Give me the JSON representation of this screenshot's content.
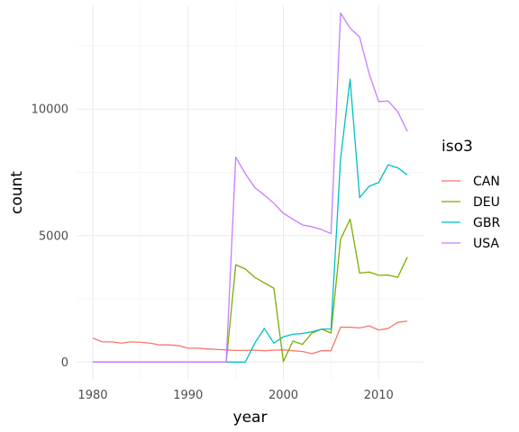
{
  "chart_data": {
    "type": "line",
    "xlabel": "year",
    "ylabel": "count",
    "xlim": [
      1978.3,
      2014.7
    ],
    "ylim": [
      -700,
      14100
    ],
    "x_ticks": [
      1980,
      1990,
      2000,
      2010
    ],
    "x_tick_labels": [
      "1980",
      "1990",
      "2000",
      "2010"
    ],
    "y_ticks": [
      0,
      5000,
      10000
    ],
    "y_tick_labels": [
      "0",
      "5000",
      "10000"
    ],
    "grid": true,
    "legend": {
      "title": "iso3",
      "position": "right"
    },
    "x": [
      1980,
      1981,
      1982,
      1983,
      1984,
      1985,
      1986,
      1987,
      1988,
      1989,
      1990,
      1991,
      1992,
      1993,
      1994,
      1995,
      1996,
      1997,
      1998,
      1999,
      2000,
      2001,
      2002,
      2003,
      2004,
      2005,
      2006,
      2007,
      2008,
      2009,
      2010,
      2011,
      2012,
      2013
    ],
    "series": [
      {
        "name": "CAN",
        "color": "#F8766D",
        "values": [
          950,
          800,
          800,
          750,
          800,
          780,
          750,
          680,
          680,
          650,
          550,
          550,
          520,
          500,
          480,
          460,
          460,
          470,
          450,
          470,
          480,
          450,
          420,
          330,
          450,
          450,
          1380,
          1380,
          1350,
          1430,
          1270,
          1330,
          1570,
          1620
        ]
      },
      {
        "name": "DEU",
        "color": "#7CAE00",
        "values": [
          0,
          0,
          0,
          0,
          0,
          0,
          0,
          0,
          0,
          0,
          0,
          0,
          0,
          0,
          0,
          3850,
          3680,
          3350,
          3130,
          2920,
          20,
          830,
          700,
          1150,
          1300,
          1150,
          4850,
          5650,
          3520,
          3560,
          3430,
          3440,
          3350,
          4150
        ]
      },
      {
        "name": "GBR",
        "color": "#00BFC4",
        "values": [
          0,
          0,
          0,
          0,
          0,
          0,
          0,
          0,
          0,
          0,
          0,
          0,
          0,
          0,
          0,
          0,
          0,
          750,
          1330,
          750,
          1000,
          1100,
          1130,
          1200,
          1300,
          1310,
          8050,
          11180,
          6500,
          6950,
          7100,
          7800,
          7680,
          7400
        ]
      },
      {
        "name": "USA",
        "color": "#C77CFF",
        "values": [
          0,
          0,
          0,
          0,
          0,
          0,
          0,
          0,
          0,
          0,
          0,
          0,
          0,
          0,
          0,
          8100,
          7450,
          6900,
          6600,
          6280,
          5880,
          5650,
          5420,
          5350,
          5240,
          5080,
          13800,
          13200,
          12850,
          11400,
          10300,
          10320,
          9900,
          9120
        ]
      }
    ]
  }
}
